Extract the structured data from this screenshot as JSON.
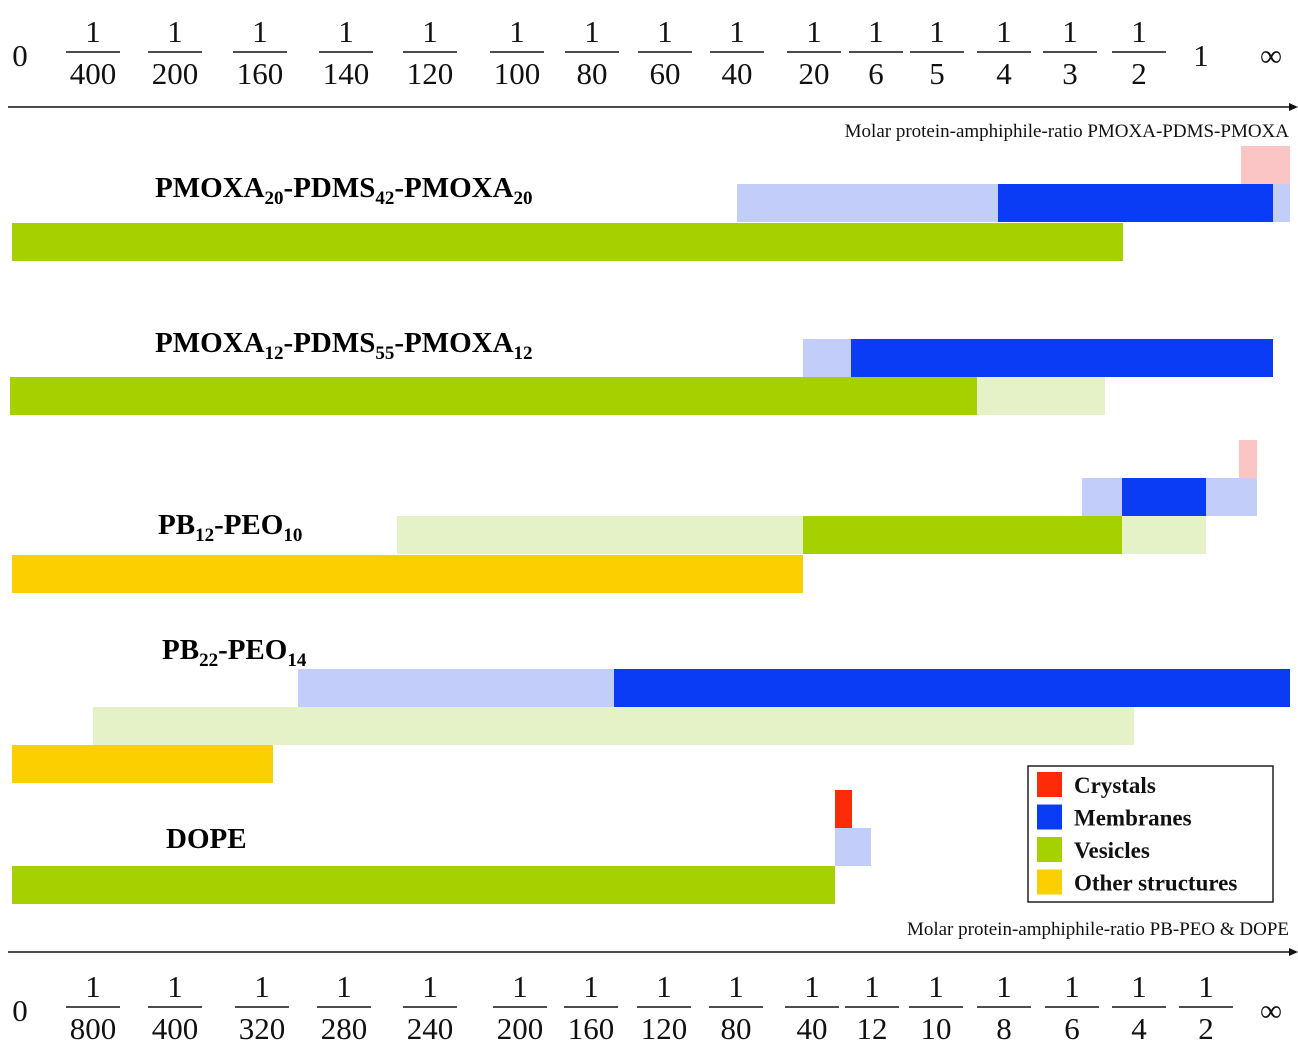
{
  "chart_data": {
    "type": "bar",
    "title": "",
    "x_axis_top": {
      "label": "Molar protein-amphiphile-ratio PMOXA-PDMS-PMOXA",
      "ticks": [
        "0",
        "1/400",
        "1/200",
        "1/160",
        "1/140",
        "1/120",
        "1/100",
        "1/80",
        "1/60",
        "1/40",
        "1/20",
        "1/6",
        "1/5",
        "1/4",
        "1/3",
        "1/2",
        "1",
        "∞"
      ]
    },
    "x_axis_bottom": {
      "label": "Molar protein-amphiphile-ratio PB-PEO & DOPE",
      "ticks": [
        "0",
        "1/800",
        "1/400",
        "1/320",
        "1/280",
        "1/240",
        "1/200",
        "1/160",
        "1/120",
        "1/80",
        "1/40",
        "1/12",
        "1/10",
        "1/8",
        "1/6",
        "1/4",
        "1/2",
        "∞"
      ]
    },
    "legend": {
      "placement": "bottom-right",
      "entries": [
        {
          "name": "Crystals",
          "color": "#ff2a08"
        },
        {
          "name": "Membranes",
          "color": "#0a3cf6"
        },
        {
          "name": "Vesicles",
          "color": "#a6d100"
        },
        {
          "name": "Other structures",
          "color": "#fccf00"
        }
      ]
    },
    "colors": {
      "crystals": "#ff2a08",
      "crystals_light": "#fbc5c5",
      "membranes": "#0a3cf6",
      "membranes_light": "#c2cdf9",
      "vesicles": "#a6d100",
      "vesicles_light": "#e5f2c7",
      "other": "#fccf00"
    },
    "systems": [
      {
        "name": "PMOXA",
        "parts": [
          {
            "t": "PMOXA",
            "sub": false
          },
          {
            "t": "20",
            "sub": true
          },
          {
            "t": "-PDMS",
            "sub": false
          },
          {
            "t": "42",
            "sub": true
          },
          {
            "t": "-PMOXA",
            "sub": false
          },
          {
            "t": "20",
            "sub": true
          }
        ],
        "axis": "top",
        "bars": [
          {
            "category": "crystals",
            "shade": "light",
            "from": "1",
            "to": "∞",
            "row": 0
          },
          {
            "category": "membranes",
            "shade": "light",
            "from": "1/40",
            "to": "1/6",
            "row": 1
          },
          {
            "category": "membranes",
            "shade": "solid",
            "from": "1/6",
            "to": "1",
            "row": 1
          },
          {
            "category": "membranes",
            "shade": "light",
            "from": "1",
            "to": "∞",
            "row": 1
          },
          {
            "category": "vesicles",
            "shade": "solid",
            "from": "0",
            "to": "1/3",
            "row": 2
          }
        ]
      },
      {
        "name": "PMOXA",
        "parts": [
          {
            "t": "PMOXA",
            "sub": false
          },
          {
            "t": "12",
            "sub": true
          },
          {
            "t": "-PDMS",
            "sub": false
          },
          {
            "t": "55",
            "sub": true
          },
          {
            "t": "-PMOXA",
            "sub": false
          },
          {
            "t": "12",
            "sub": true
          }
        ],
        "axis": "top",
        "bars": [
          {
            "category": "membranes",
            "shade": "light",
            "from": "1/20",
            "to": "1/6",
            "row": 1
          },
          {
            "category": "membranes",
            "shade": "solid",
            "from": "1/6",
            "to": "1",
            "row": 1
          },
          {
            "category": "vesicles",
            "shade": "solid",
            "from": "0",
            "to": "1/5",
            "row": 2
          },
          {
            "category": "vesicles",
            "shade": "light",
            "from": "1/5",
            "to": "1/3",
            "row": 2
          }
        ]
      },
      {
        "name": "PB-PEO",
        "parts": [
          {
            "t": "PB",
            "sub": false
          },
          {
            "t": "12",
            "sub": true
          },
          {
            "t": "-PEO",
            "sub": false
          },
          {
            "t": "10",
            "sub": true
          }
        ],
        "axis": "bottom",
        "bars": [
          {
            "category": "crystals",
            "shade": "light",
            "from": "1/2",
            "to": "∞",
            "row": 0
          },
          {
            "category": "membranes",
            "shade": "light",
            "from": "1/6",
            "to": "1/4",
            "row": 1
          },
          {
            "category": "membranes",
            "shade": "solid",
            "from": "1/4",
            "to": "1/2",
            "row": 1
          },
          {
            "category": "membranes",
            "shade": "light",
            "from": "1/2",
            "to": "∞",
            "row": 1
          },
          {
            "category": "vesicles",
            "shade": "light",
            "from": "1/240",
            "to": "1/80",
            "row": 2
          },
          {
            "category": "vesicles",
            "shade": "solid",
            "from": "1/80",
            "to": "1/6",
            "row": 2
          },
          {
            "category": "vesicles",
            "shade": "light",
            "from": "1/6",
            "to": "1/2",
            "row": 2
          },
          {
            "category": "other",
            "shade": "solid",
            "from": "0",
            "to": "1/80",
            "row": 3
          }
        ]
      },
      {
        "name": "PB-PEO",
        "parts": [
          {
            "t": "PB",
            "sub": false
          },
          {
            "t": "22",
            "sub": true
          },
          {
            "t": "-PEO",
            "sub": false
          },
          {
            "t": "14",
            "sub": true
          }
        ],
        "axis": "bottom",
        "bars": [
          {
            "category": "membranes",
            "shade": "light",
            "from": "1/280",
            "to": "1/160",
            "row": 1
          },
          {
            "category": "membranes",
            "shade": "solid",
            "from": "1/160",
            "to": "∞",
            "row": 1
          },
          {
            "category": "vesicles",
            "shade": "light",
            "from": "1/800",
            "to": "1/6",
            "row": 2
          },
          {
            "category": "other",
            "shade": "solid",
            "from": "0",
            "to": "1/320",
            "row": 3
          }
        ]
      },
      {
        "name": "DOPE",
        "parts": [
          {
            "t": "DOPE",
            "sub": false
          }
        ],
        "axis": "bottom",
        "bars": [
          {
            "category": "crystals",
            "shade": "solid",
            "from": "1/40",
            "to": "1/40",
            "row": 0
          },
          {
            "category": "membranes",
            "shade": "light",
            "from": "1/40",
            "to": "1/12",
            "row": 1
          },
          {
            "category": "vesicles",
            "shade": "solid",
            "from": "0",
            "to": "1/40",
            "row": 2
          }
        ]
      }
    ]
  }
}
